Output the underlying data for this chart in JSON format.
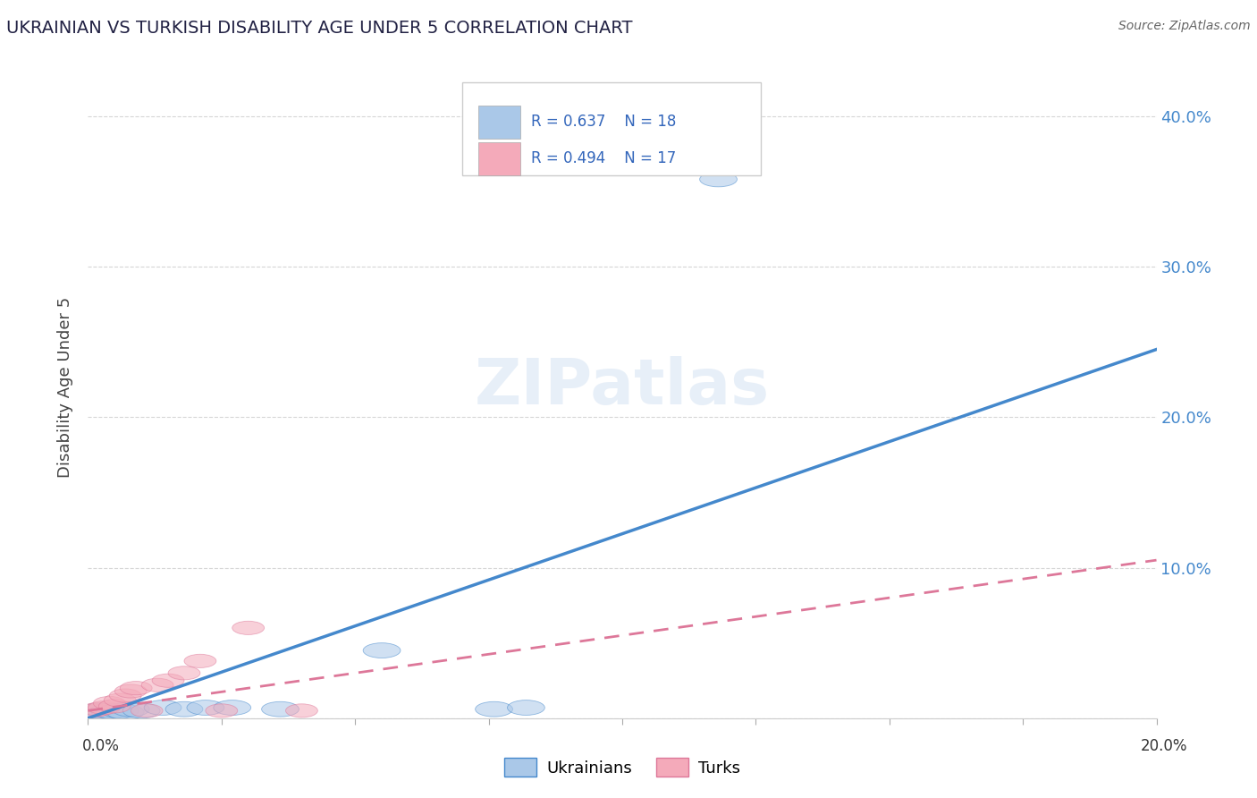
{
  "title": "UKRAINIAN VS TURKISH DISABILITY AGE UNDER 5 CORRELATION CHART",
  "source": "Source: ZipAtlas.com",
  "ylabel": "Disability Age Under 5",
  "yticks": [
    0.0,
    0.1,
    0.2,
    0.3,
    0.4
  ],
  "ytick_labels": [
    "",
    "10.0%",
    "20.0%",
    "30.0%",
    "40.0%"
  ],
  "xlim": [
    0.0,
    0.2
  ],
  "ylim": [
    0.0,
    0.44
  ],
  "ukrainian_R": 0.637,
  "ukrainian_N": 18,
  "turkish_R": 0.494,
  "turkish_N": 17,
  "ukrainian_color": "#aac8e8",
  "turkish_color": "#f4aaba",
  "ukrainian_line_color": "#4488cc",
  "turkish_line_color": "#dd7799",
  "ukr_line_x": [
    0.0,
    0.2
  ],
  "ukr_line_y": [
    0.0,
    0.245
  ],
  "turk_line_x": [
    0.0,
    0.2
  ],
  "turk_line_y": [
    0.005,
    0.105
  ],
  "ukr_scatter_x": [
    0.001,
    0.002,
    0.003,
    0.004,
    0.005,
    0.006,
    0.007,
    0.008,
    0.01,
    0.014,
    0.018,
    0.022,
    0.027,
    0.036,
    0.055,
    0.076,
    0.082,
    0.118
  ],
  "ukr_scatter_y": [
    0.004,
    0.005,
    0.003,
    0.005,
    0.004,
    0.005,
    0.004,
    0.006,
    0.005,
    0.007,
    0.006,
    0.007,
    0.007,
    0.006,
    0.045,
    0.006,
    0.007,
    0.358
  ],
  "turk_scatter_x": [
    0.001,
    0.002,
    0.003,
    0.004,
    0.005,
    0.006,
    0.007,
    0.008,
    0.009,
    0.011,
    0.013,
    0.015,
    0.018,
    0.021,
    0.025,
    0.03,
    0.04
  ],
  "turk_scatter_y": [
    0.005,
    0.006,
    0.007,
    0.01,
    0.008,
    0.012,
    0.015,
    0.018,
    0.02,
    0.005,
    0.022,
    0.025,
    0.03,
    0.038,
    0.005,
    0.06,
    0.005
  ]
}
